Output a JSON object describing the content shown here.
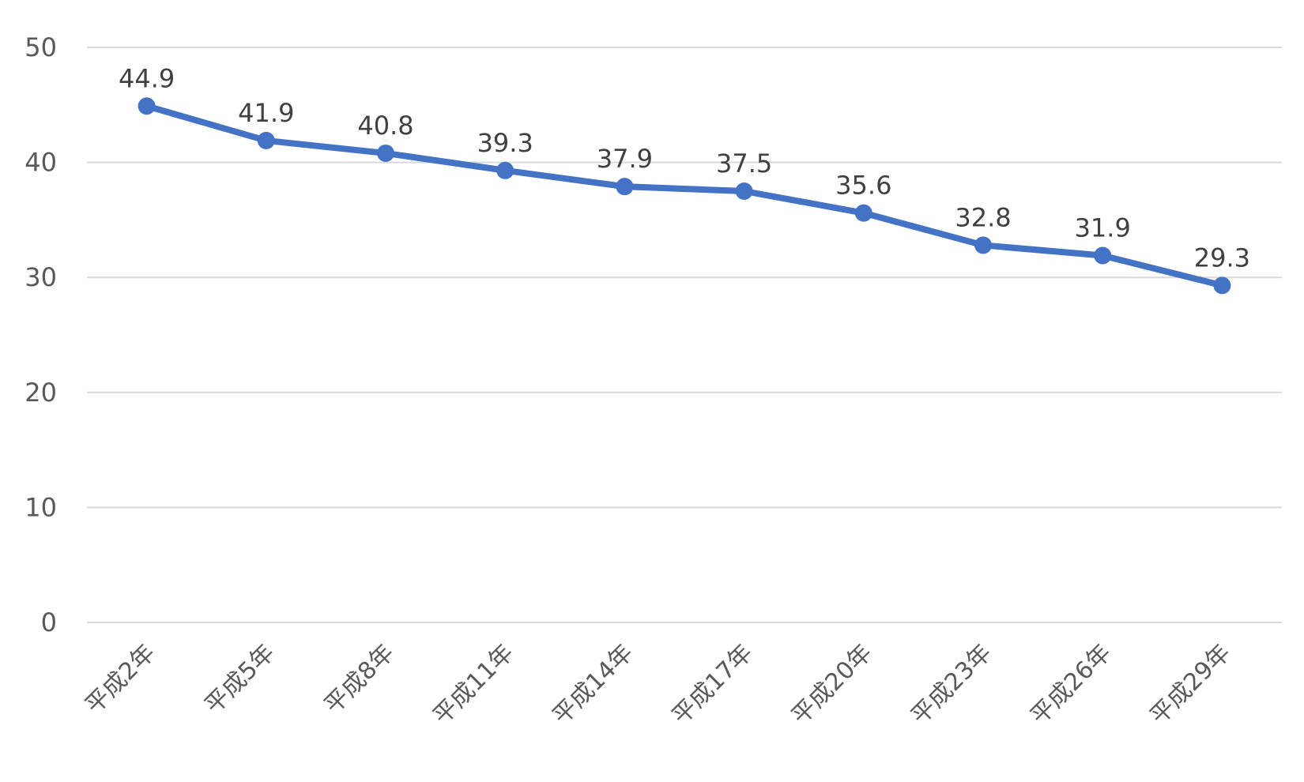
{
  "chart_data": {
    "type": "line",
    "title": "",
    "xlabel": "",
    "ylabel": "",
    "categories": [
      "平成2年",
      "平成5年",
      "平成8年",
      "平成11年",
      "平成14年",
      "平成17年",
      "平成20年",
      "平成23年",
      "平成26年",
      "平成29年"
    ],
    "series": [
      {
        "values": [
          44.9,
          41.9,
          40.8,
          39.3,
          37.9,
          37.5,
          35.6,
          32.8,
          31.9,
          29.3
        ],
        "color": "#4472c4"
      }
    ],
    "ylim": [
      0,
      50
    ],
    "yticks": [
      0,
      10,
      20,
      30,
      40,
      50
    ],
    "grid": true,
    "data_labels": true,
    "legend": "none"
  }
}
